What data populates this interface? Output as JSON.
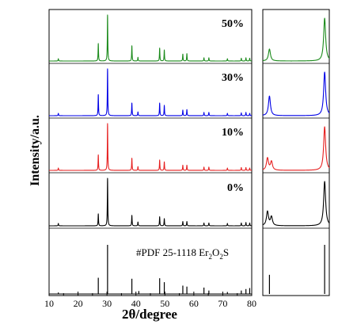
{
  "chart_data": {
    "type": "line",
    "xlabel": "2θ/degree",
    "ylabel": "Intensity/a.u.",
    "xlim": [
      10,
      80
    ],
    "x_ticks": [
      10,
      20,
      30,
      40,
      50,
      60,
      70,
      80
    ],
    "series": [
      {
        "label": "50%",
        "color": "#1a8a1a",
        "main_peaks": [
          [
            13.2,
            0.05
          ],
          [
            27.0,
            0.38
          ],
          [
            30.2,
            1.0
          ],
          [
            38.6,
            0.33
          ],
          [
            40.7,
            0.08
          ],
          [
            48.2,
            0.28
          ],
          [
            49.8,
            0.24
          ],
          [
            56.2,
            0.15
          ],
          [
            57.6,
            0.16
          ],
          [
            63.5,
            0.07
          ],
          [
            65.2,
            0.07
          ],
          [
            71.6,
            0.05
          ],
          [
            76.4,
            0.06
          ],
          [
            78.0,
            0.07
          ],
          [
            79.3,
            0.06
          ]
        ],
        "zoom_peaks": [
          [
            0.1,
            0.28
          ],
          [
            0.93,
            1.0
          ]
        ]
      },
      {
        "label": "30%",
        "color": "#0000e6",
        "main_peaks": [
          [
            13.2,
            0.05
          ],
          [
            27.0,
            0.45
          ],
          [
            30.2,
            1.0
          ],
          [
            38.6,
            0.27
          ],
          [
            40.7,
            0.08
          ],
          [
            48.2,
            0.27
          ],
          [
            49.8,
            0.22
          ],
          [
            56.2,
            0.12
          ],
          [
            57.6,
            0.13
          ],
          [
            63.5,
            0.07
          ],
          [
            65.2,
            0.07
          ],
          [
            71.6,
            0.05
          ],
          [
            76.4,
            0.06
          ],
          [
            78.0,
            0.07
          ],
          [
            79.3,
            0.05
          ]
        ],
        "zoom_peaks": [
          [
            0.1,
            0.45
          ],
          [
            0.93,
            1.0
          ]
        ]
      },
      {
        "label": "10%",
        "color": "#e61e1e",
        "main_peaks": [
          [
            13.2,
            0.05
          ],
          [
            27.0,
            0.33
          ],
          [
            30.2,
            1.0
          ],
          [
            38.6,
            0.26
          ],
          [
            40.7,
            0.08
          ],
          [
            48.2,
            0.22
          ],
          [
            49.8,
            0.18
          ],
          [
            56.2,
            0.11
          ],
          [
            57.6,
            0.11
          ],
          [
            63.5,
            0.07
          ],
          [
            65.2,
            0.07
          ],
          [
            71.6,
            0.05
          ],
          [
            76.4,
            0.06
          ],
          [
            78.0,
            0.06
          ],
          [
            79.3,
            0.05
          ]
        ],
        "zoom_peaks": [
          [
            0.07,
            0.28
          ],
          [
            0.13,
            0.2
          ],
          [
            0.93,
            1.0
          ]
        ]
      },
      {
        "label": "0%",
        "color": "#000000",
        "main_peaks": [
          [
            13.2,
            0.05
          ],
          [
            27.0,
            0.25
          ],
          [
            30.2,
            1.0
          ],
          [
            38.6,
            0.22
          ],
          [
            40.7,
            0.08
          ],
          [
            48.2,
            0.19
          ],
          [
            49.8,
            0.15
          ],
          [
            56.2,
            0.09
          ],
          [
            57.6,
            0.09
          ],
          [
            63.5,
            0.06
          ],
          [
            65.2,
            0.06
          ],
          [
            71.6,
            0.05
          ],
          [
            76.4,
            0.06
          ],
          [
            78.0,
            0.07
          ],
          [
            79.3,
            0.06
          ]
        ],
        "zoom_peaks": [
          [
            0.07,
            0.32
          ],
          [
            0.13,
            0.2
          ],
          [
            0.93,
            1.0
          ]
        ]
      }
    ],
    "reference": {
      "label_text": "#PDF 25-1118 Er",
      "label_sub1": "2",
      "label_mid": "O",
      "label_sub2": "2",
      "label_end": "S",
      "color": "#000000",
      "sticks": [
        [
          13.2,
          0.03
        ],
        [
          27.0,
          0.33
        ],
        [
          30.2,
          1.0
        ],
        [
          38.6,
          0.31
        ],
        [
          41.0,
          0.06
        ],
        [
          48.2,
          0.32
        ],
        [
          49.8,
          0.24
        ],
        [
          56.2,
          0.17
        ],
        [
          57.6,
          0.15
        ],
        [
          63.5,
          0.13
        ],
        [
          65.2,
          0.07
        ],
        [
          71.6,
          0.04
        ],
        [
          76.4,
          0.07
        ],
        [
          78.0,
          0.1
        ],
        [
          79.3,
          0.12
        ]
      ],
      "zoom_sticks": [
        [
          0.1,
          0.39
        ],
        [
          0.93,
          1.0
        ]
      ]
    }
  }
}
